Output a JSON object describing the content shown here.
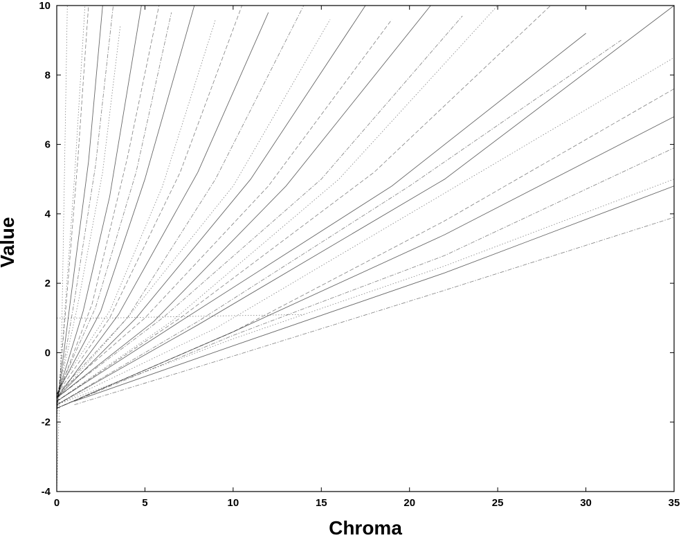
{
  "chart_data": {
    "type": "line",
    "title": "",
    "xlabel": "Chroma",
    "ylabel": "Value",
    "xlim": [
      0,
      35
    ],
    "ylim": [
      -4,
      10
    ],
    "grid": false,
    "legend": "none",
    "x_ticks": [
      0,
      5,
      10,
      15,
      20,
      25,
      30,
      35
    ],
    "y_ticks": [
      -4,
      -2,
      0,
      2,
      4,
      6,
      8,
      10
    ],
    "line_color": "#000000",
    "series": [
      {
        "x": [
          0,
          0.5,
          1.0,
          1.6
        ],
        "y": [
          -2.0,
          1.5,
          5.0,
          10.0
        ],
        "dash": "dot"
      },
      {
        "x": [
          0,
          0.6,
          1.2,
          1.8
        ],
        "y": [
          -1.8,
          1.8,
          5.6,
          10.0
        ],
        "dash": "dash"
      },
      {
        "x": [
          0,
          0.8,
          1.8,
          2.6
        ],
        "y": [
          -1.6,
          1.6,
          5.5,
          10.0
        ],
        "dash": "solid"
      },
      {
        "x": [
          0,
          1.0,
          2.2,
          3.2
        ],
        "y": [
          -1.5,
          1.5,
          5.4,
          10.0
        ],
        "dash": "dashdot"
      },
      {
        "x": [
          0,
          1.2,
          2.6,
          3.6
        ],
        "y": [
          -1.4,
          1.4,
          5.2,
          9.4
        ],
        "dash": "dot"
      },
      {
        "x": [
          0,
          1.5,
          3.0,
          4.8
        ],
        "y": [
          -1.3,
          1.2,
          4.5,
          10.0
        ],
        "dash": "solid"
      },
      {
        "x": [
          0,
          2.0,
          4.0,
          5.8
        ],
        "y": [
          -1.3,
          1.4,
          5.6,
          10.0
        ],
        "dash": "dash"
      },
      {
        "x": [
          0,
          2.2,
          4.5,
          6.5
        ],
        "y": [
          -1.2,
          1.3,
          5.2,
          9.8
        ],
        "dash": "dashdot"
      },
      {
        "x": [
          0,
          2.5,
          5.0,
          7.8
        ],
        "y": [
          -1.2,
          1.2,
          5.0,
          10.0
        ],
        "dash": "solid"
      },
      {
        "x": [
          0,
          3.0,
          6.0,
          9.0
        ],
        "y": [
          -1.1,
          1.2,
          4.8,
          9.6
        ],
        "dash": "dot"
      },
      {
        "x": [
          0,
          3.0,
          7.0,
          10.5
        ],
        "y": [
          -1.2,
          1.0,
          5.2,
          10.0
        ],
        "dash": "dash"
      },
      {
        "x": [
          0,
          3.5,
          8.0,
          12.0
        ],
        "y": [
          -1.3,
          1.1,
          5.2,
          9.8
        ],
        "dash": "solid"
      },
      {
        "x": [
          0,
          4.0,
          9.0,
          14.0
        ],
        "y": [
          -1.2,
          1.0,
          5.0,
          10.0
        ],
        "dash": "dashdot"
      },
      {
        "x": [
          0,
          4.0,
          10.0,
          15.5
        ],
        "y": [
          -1.3,
          1.0,
          4.8,
          9.6
        ],
        "dash": "dot"
      },
      {
        "x": [
          0,
          4.5,
          11.0,
          17.5
        ],
        "y": [
          -1.3,
          1.0,
          5.0,
          10.0
        ],
        "dash": "solid"
      },
      {
        "x": [
          0,
          5.0,
          12.0,
          19.0
        ],
        "y": [
          -1.2,
          1.0,
          4.8,
          9.6
        ],
        "dash": "dash"
      },
      {
        "x": [
          0,
          5.5,
          13.0,
          21.2
        ],
        "y": [
          -1.3,
          0.9,
          4.8,
          10.0
        ],
        "dash": "solid"
      },
      {
        "x": [
          0,
          6.0,
          15.0,
          23.0
        ],
        "y": [
          -1.3,
          1.0,
          5.0,
          9.7
        ],
        "dash": "dashdot"
      },
      {
        "x": [
          0,
          6.5,
          16.0,
          25.0
        ],
        "y": [
          -1.4,
          0.9,
          5.0,
          10.0
        ],
        "dash": "dot"
      },
      {
        "x": [
          0,
          7.0,
          18.0,
          28.0
        ],
        "y": [
          -1.4,
          1.0,
          5.2,
          10.0
        ],
        "dash": "dash"
      },
      {
        "x": [
          0,
          7.0,
          19.0,
          30.0
        ],
        "y": [
          -1.4,
          0.9,
          4.8,
          9.2
        ],
        "dash": "solid"
      },
      {
        "x": [
          0,
          8.0,
          20.0,
          32.0
        ],
        "y": [
          -1.5,
          0.9,
          4.8,
          9.0
        ],
        "dash": "dashdot"
      },
      {
        "x": [
          0,
          8.0,
          22.0,
          35.0
        ],
        "y": [
          -1.5,
          0.8,
          5.0,
          10.0
        ],
        "dash": "solid"
      },
      {
        "x": [
          0,
          9.0,
          22.0,
          35.0
        ],
        "y": [
          -1.5,
          0.7,
          4.6,
          8.5
        ],
        "dash": "dot"
      },
      {
        "x": [
          0,
          10.0,
          22.0,
          35.0
        ],
        "y": [
          -1.6,
          0.6,
          3.8,
          7.6
        ],
        "dash": "dash"
      },
      {
        "x": [
          0,
          10.0,
          22.0,
          35.0
        ],
        "y": [
          -1.6,
          0.6,
          3.4,
          6.8
        ],
        "dash": "solid"
      },
      {
        "x": [
          0,
          10.0,
          22.0,
          35.0
        ],
        "y": [
          -1.6,
          0.5,
          2.8,
          5.9
        ],
        "dash": "dashdot"
      },
      {
        "x": [
          0,
          10.0,
          22.0,
          35.0
        ],
        "y": [
          -1.5,
          0.4,
          2.5,
          5.0
        ],
        "dash": "dot"
      },
      {
        "x": [
          1.0,
          10.0,
          22.0,
          35.0
        ],
        "y": [
          -1.4,
          0.2,
          2.3,
          4.8
        ],
        "dash": "solid"
      },
      {
        "x": [
          1.0,
          10.0,
          22.0,
          35.0
        ],
        "y": [
          -1.5,
          -0.1,
          1.8,
          3.9
        ],
        "dash": "dashdot"
      },
      {
        "x": [
          0,
          0.3,
          0.6
        ],
        "y": [
          -4.0,
          1.0,
          10.0
        ],
        "dash": "dot"
      },
      {
        "x": [
          0,
          3.0,
          8.0,
          14.0
        ],
        "y": [
          1.0,
          1.0,
          1.05,
          1.1
        ],
        "dash": "dot"
      }
    ]
  }
}
